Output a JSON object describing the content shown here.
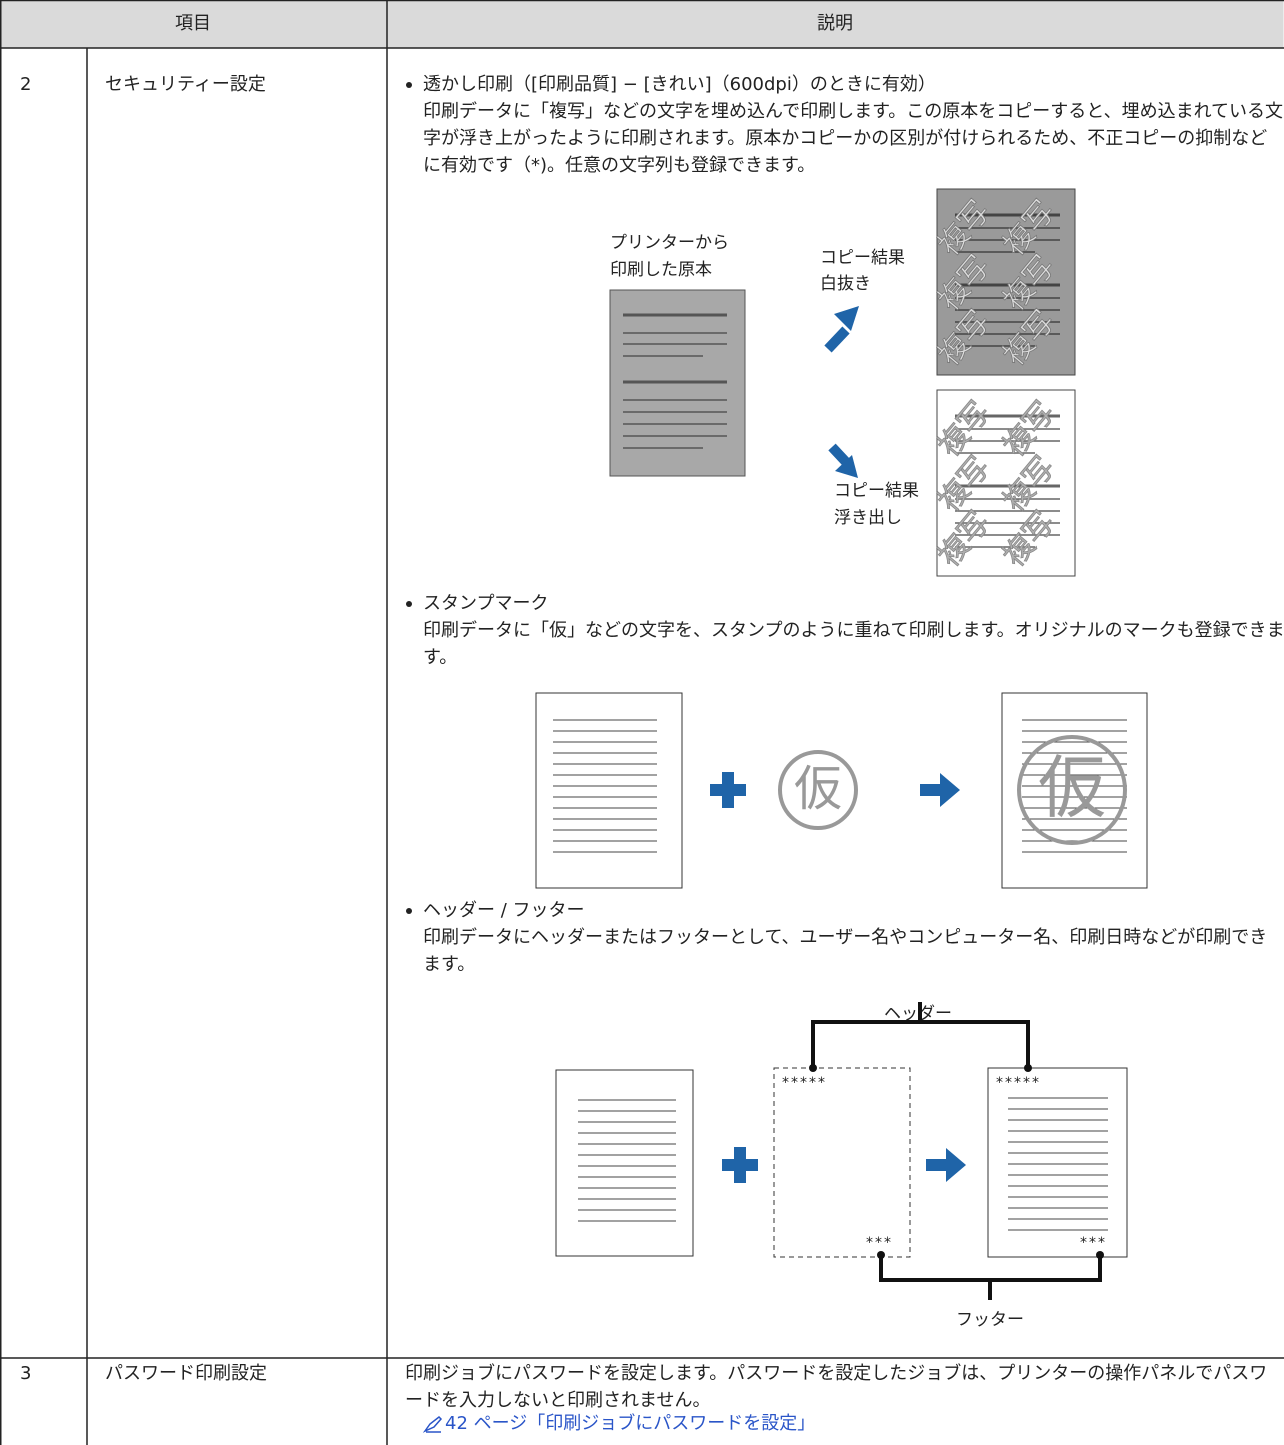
{
  "table": {
    "header": [
      "項目",
      "説明"
    ],
    "rows": [
      {
        "number": "2",
        "item": "セキュリティー設定",
        "sections": [
          {
            "title": "透かし印刷（[印刷品質] − [きれい]（600dpi）のときに有効）",
            "text": "印刷データに「複写」などの文字を埋め込んで印刷します。この原本をコピーすると、埋め込まれている文字が浮き上がったように印刷されます。原本かコピーかの区別が付けられるため、不正コピーの抑制などに有効です（*)。任意の文字列も登録できます。",
            "figure": {
              "original_label": [
                "プリンターから",
                "印刷した原本"
              ],
              "copy_white": [
                "コピー結果",
                "白抜き"
              ],
              "copy_raised": [
                "コピー結果",
                "浮き出し"
              ],
              "watermark": "複写"
            }
          },
          {
            "title": "スタンプマーク",
            "text": "印刷データに「仮」などの文字を、スタンプのように重ねて印刷します。オリジナルのマークも登録できます。",
            "figure": {
              "stamp": "仮"
            }
          },
          {
            "title": "ヘッダー / フッター",
            "text": "印刷データにヘッダーまたはフッターとして、ユーザー名やコンピューター名、印刷日時などが印刷できます。",
            "figure": {
              "header": "ヘッダー",
              "footer": "フッター",
              "header_marks": "*****",
              "footer_marks": "***"
            }
          }
        ]
      },
      {
        "number": "3",
        "item": "パスワード印刷設定",
        "text": "印刷ジョブにパスワードを設定します。パスワードを設定したジョブは、プリンターの操作パネルでパスワードを入力しないと印刷されません。",
        "link": "42 ページ「印刷ジョブにパスワードを設定」"
      }
    ]
  }
}
